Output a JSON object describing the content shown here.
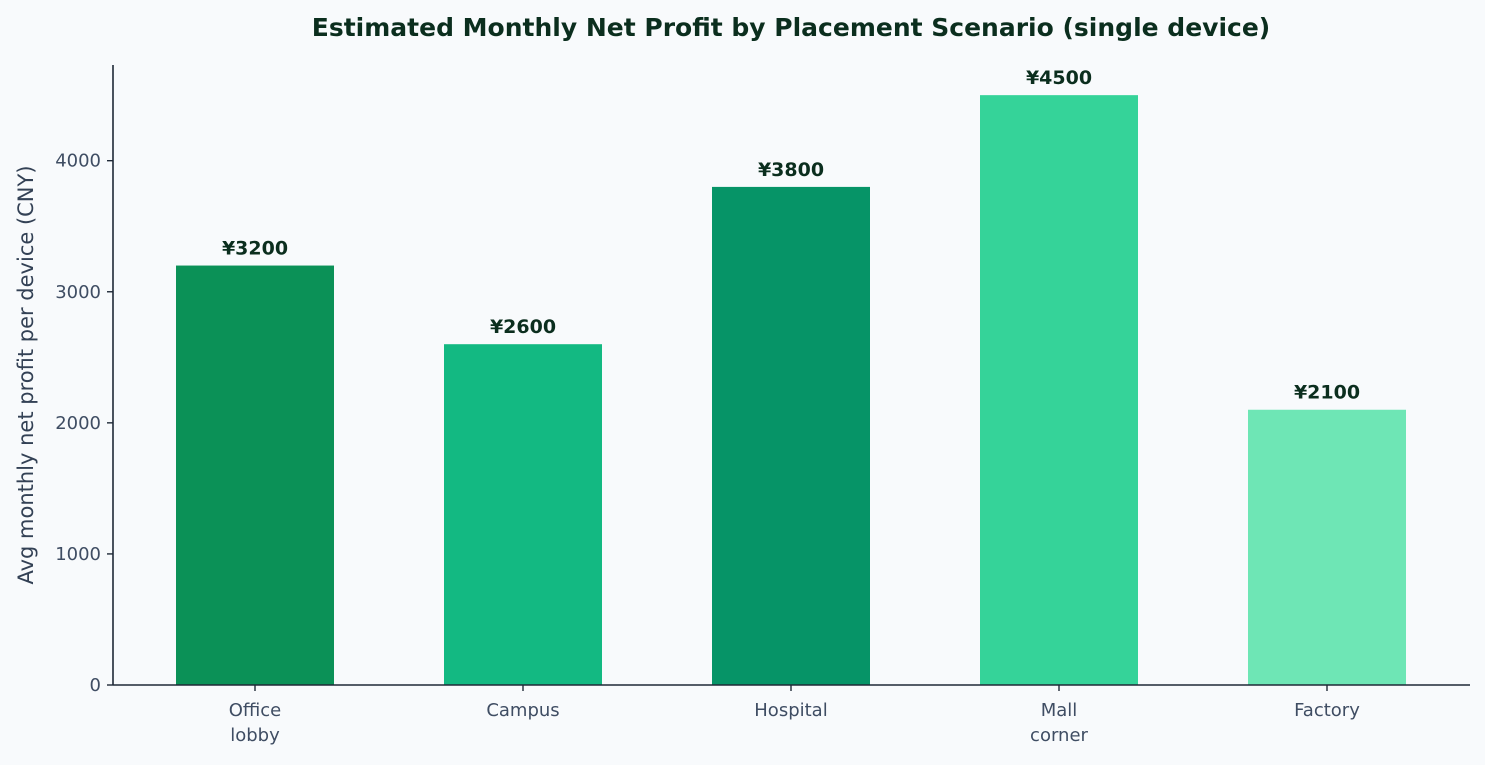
{
  "chart_data": {
    "type": "bar",
    "title": "Estimated Monthly Net Profit by Placement Scenario (single device)",
    "xlabel": "",
    "ylabel": "Avg monthly net profit per device (CNY)",
    "categories": [
      [
        "Office",
        "lobby"
      ],
      [
        "Campus"
      ],
      [
        "Hospital"
      ],
      [
        "Mall",
        "corner"
      ],
      [
        "Factory"
      ]
    ],
    "values": [
      3200,
      2600,
      3800,
      4500,
      2100
    ],
    "value_labels": [
      "¥3200",
      "¥2600",
      "¥3800",
      "¥4500",
      "¥2100"
    ],
    "bar_colors": [
      "#0b9157",
      "#13b982",
      "#069467",
      "#35d399",
      "#6ee6b5"
    ],
    "ylim": [
      0,
      4730
    ],
    "yticks": [
      0,
      1000,
      2000,
      3000,
      4000
    ],
    "grid": false,
    "legend": "none"
  }
}
